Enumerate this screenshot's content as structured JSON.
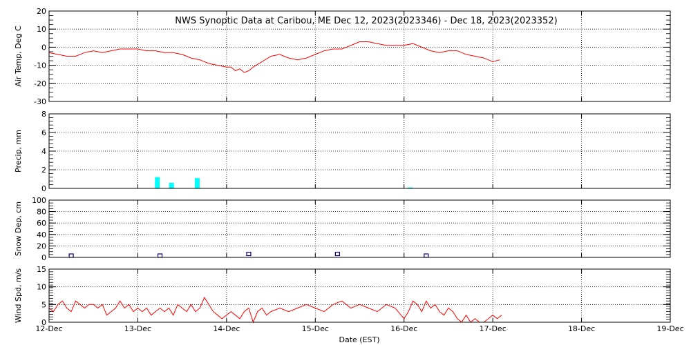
{
  "chart_data": {
    "title": "NWS Synoptic Data at Caribou, ME    Dec 12, 2023(2023346) - Dec 18, 2023(2023352)",
    "xlabel": "Date (EST)",
    "x_ticks": [
      "12-Dec",
      "13-Dec",
      "14-Dec",
      "15-Dec",
      "16-Dec",
      "17-Dec",
      "18-Dec",
      "19-Dec"
    ],
    "xlim_days": [
      0,
      7
    ],
    "panels": [
      {
        "id": "air_temp",
        "type": "line",
        "ylabel": "Air Temp, Deg C",
        "ylim": [
          -30,
          20
        ],
        "yticks": [
          "20",
          "10",
          "0",
          "-10",
          "-20",
          "-30"
        ],
        "series": [
          {
            "color": "#ff0000",
            "x": [
              0.0,
              0.1,
              0.2,
              0.3,
              0.4,
              0.5,
              0.6,
              0.7,
              0.8,
              0.9,
              1.0,
              1.1,
              1.2,
              1.3,
              1.4,
              1.5,
              1.6,
              1.7,
              1.8,
              1.9,
              2.0,
              2.05,
              2.1,
              2.15,
              2.2,
              2.25,
              2.3,
              2.4,
              2.5,
              2.6,
              2.7,
              2.8,
              2.9,
              3.0,
              3.1,
              3.2,
              3.3,
              3.4,
              3.5,
              3.6,
              3.7,
              3.8,
              3.9,
              4.0,
              4.1,
              4.2,
              4.3,
              4.4,
              4.5,
              4.6,
              4.7,
              4.8,
              4.9,
              5.0,
              5.08
            ],
            "y": [
              -3,
              -4,
              -5,
              -5,
              -3,
              -2,
              -3,
              -2,
              -1,
              -1,
              -1,
              -2,
              -2,
              -3,
              -3,
              -4,
              -6,
              -7,
              -9,
              -10,
              -11,
              -11,
              -13,
              -12,
              -14,
              -13,
              -11,
              -8,
              -5,
              -4,
              -6,
              -7,
              -6,
              -4,
              -2,
              -1,
              -1,
              1,
              3,
              3,
              2,
              1,
              1,
              1,
              2,
              0,
              -2,
              -3,
              -2,
              -2,
              -4,
              -5,
              -6,
              -8,
              -7
            ]
          }
        ]
      },
      {
        "id": "precip",
        "type": "bar",
        "ylabel": "Precip, mm",
        "ylim": [
          0,
          8
        ],
        "yticks": [
          "8",
          "6",
          "4",
          "2",
          "0"
        ],
        "color": "#00ffff",
        "x": [
          1.22,
          1.38,
          1.67,
          4.07
        ],
        "values": [
          1.2,
          0.6,
          1.1,
          0.1
        ]
      },
      {
        "id": "snow_depth",
        "type": "scatter",
        "ylabel": "Snow Dep, cm",
        "ylim": [
          0,
          100
        ],
        "yticks": [
          "100",
          "80",
          "60",
          "40",
          "20",
          "0"
        ],
        "color": "#000080",
        "x": [
          0.25,
          1.25,
          2.25,
          3.25,
          4.25
        ],
        "values": [
          0,
          0,
          3,
          3,
          0
        ]
      },
      {
        "id": "wind_speed",
        "type": "line",
        "ylabel": "Wind Spd, m/s",
        "ylim": [
          0,
          15
        ],
        "yticks": [
          "15",
          "10",
          "5",
          "0"
        ],
        "series": [
          {
            "color": "#ff0000",
            "x": [
              0.0,
              0.05,
              0.1,
              0.15,
              0.2,
              0.25,
              0.3,
              0.35,
              0.4,
              0.45,
              0.5,
              0.55,
              0.6,
              0.65,
              0.7,
              0.75,
              0.8,
              0.85,
              0.9,
              0.95,
              1.0,
              1.05,
              1.1,
              1.15,
              1.2,
              1.25,
              1.3,
              1.35,
              1.4,
              1.45,
              1.5,
              1.55,
              1.6,
              1.65,
              1.7,
              1.75,
              1.8,
              1.85,
              1.9,
              1.95,
              2.0,
              2.05,
              2.1,
              2.15,
              2.2,
              2.25,
              2.3,
              2.35,
              2.4,
              2.45,
              2.5,
              2.6,
              2.7,
              2.8,
              2.9,
              3.0,
              3.1,
              3.2,
              3.3,
              3.4,
              3.5,
              3.6,
              3.7,
              3.8,
              3.9,
              4.0,
              4.05,
              4.1,
              4.15,
              4.2,
              4.25,
              4.3,
              4.35,
              4.4,
              4.45,
              4.5,
              4.55,
              4.6,
              4.65,
              4.7,
              4.75,
              4.8,
              4.85,
              4.9,
              4.95,
              5.0,
              5.05,
              5.1
            ],
            "y": [
              4,
              3,
              5,
              6,
              4,
              3,
              6,
              5,
              4,
              5,
              5,
              4,
              5,
              2,
              3,
              4,
              6,
              4,
              5,
              3,
              4,
              3,
              4,
              2,
              3,
              4,
              3,
              4,
              2,
              5,
              4,
              3,
              5,
              3,
              4,
              7,
              5,
              3,
              2,
              1,
              2,
              3,
              2,
              1,
              3,
              4,
              0,
              3,
              4,
              2,
              3,
              4,
              3,
              4,
              5,
              4,
              3,
              5,
              6,
              4,
              5,
              4,
              3,
              5,
              4,
              1,
              3,
              6,
              5,
              3,
              6,
              4,
              5,
              3,
              2,
              4,
              3,
              1,
              0,
              2,
              0,
              1,
              0,
              -1,
              1,
              2,
              1,
              2
            ]
          }
        ]
      }
    ]
  }
}
